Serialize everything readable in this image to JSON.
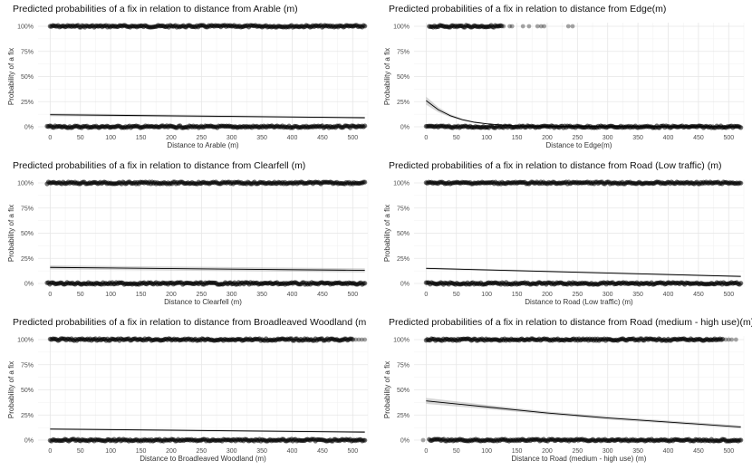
{
  "chart_data": [
    {
      "type": "scatter",
      "title": "Predicted probabilities of a fix in relation to distance from Arable (m)",
      "xlabel": "Distance to Arable (m)",
      "ylabel": "Probability of a fix",
      "xlim": [
        -20,
        525
      ],
      "ylim": [
        0,
        1
      ],
      "xticks": [
        0,
        50,
        100,
        150,
        200,
        250,
        300,
        350,
        400,
        450,
        500
      ],
      "yticks": [
        0,
        0.25,
        0.5,
        0.75,
        1
      ],
      "ytick_labels": [
        "0%",
        "25%",
        "50%",
        "75%",
        "100%"
      ],
      "grid": true,
      "points_at_1": {
        "x_start": 0,
        "x_end": 520,
        "sparse": []
      },
      "points_at_0": {
        "x_start": -5,
        "x_end": 520,
        "sparse": []
      },
      "fit_line": {
        "x": [
          0,
          520
        ],
        "y": [
          0.12,
          0.09
        ]
      },
      "ci_band": {
        "x": [
          0,
          520
        ],
        "lower": [
          0.105,
          0.08
        ],
        "upper": [
          0.135,
          0.1
        ]
      }
    },
    {
      "type": "scatter",
      "title": "Predicted probabilities of a fix in relation to distance from Edge(m)",
      "xlabel": "Distance to Edge(m)",
      "ylabel": "Probability of a fix",
      "xlim": [
        -20,
        525
      ],
      "ylim": [
        0,
        1
      ],
      "xticks": [
        0,
        50,
        100,
        150,
        200,
        250,
        300,
        350,
        400,
        450,
        500
      ],
      "yticks": [
        0,
        0.25,
        0.5,
        0.75,
        1
      ],
      "ytick_labels": [
        "0%",
        "25%",
        "50%",
        "75%",
        "100%"
      ],
      "grid": true,
      "points_at_1": {
        "x_start": 5,
        "x_end": 125,
        "sparse": [
          128,
          138,
          142,
          160,
          170,
          184,
          190,
          195,
          235,
          242
        ]
      },
      "points_at_0": {
        "x_start": 0,
        "x_end": 520,
        "sparse": []
      },
      "fit_line": {
        "x": [
          0,
          20,
          40,
          60,
          80,
          100,
          120,
          150,
          200,
          300,
          400,
          520
        ],
        "y": [
          0.26,
          0.17,
          0.11,
          0.07,
          0.045,
          0.03,
          0.02,
          0.01,
          0.005,
          0.003,
          0.002,
          0.001
        ]
      },
      "ci_band": {
        "x": [
          0,
          20,
          40,
          60,
          80,
          100,
          120,
          150,
          200,
          300,
          400,
          520
        ],
        "lower": [
          0.22,
          0.145,
          0.095,
          0.06,
          0.038,
          0.025,
          0.016,
          0.008,
          0.004,
          0.002,
          0.001,
          0.0
        ],
        "upper": [
          0.3,
          0.195,
          0.125,
          0.08,
          0.052,
          0.035,
          0.024,
          0.012,
          0.006,
          0.004,
          0.003,
          0.002
        ]
      }
    },
    {
      "type": "scatter",
      "title": "Predicted probabilities of a fix in relation to distance from Clearfell (m)",
      "xlabel": "Distance to Clearfell (m)",
      "ylabel": "Probability of a fix",
      "xlim": [
        -20,
        525
      ],
      "ylim": [
        0,
        1
      ],
      "xticks": [
        0,
        50,
        100,
        150,
        200,
        250,
        300,
        350,
        400,
        450,
        500
      ],
      "yticks": [
        0,
        0.25,
        0.5,
        0.75,
        1
      ],
      "ytick_labels": [
        "0%",
        "25%",
        "50%",
        "75%",
        "100%"
      ],
      "grid": true,
      "points_at_1": {
        "x_start": -5,
        "x_end": 520,
        "sparse": []
      },
      "points_at_0": {
        "x_start": -5,
        "x_end": 520,
        "sparse": []
      },
      "fit_line": {
        "x": [
          0,
          520
        ],
        "y": [
          0.16,
          0.13
        ]
      },
      "ci_band": {
        "x": [
          0,
          520
        ],
        "lower": [
          0.14,
          0.11
        ],
        "upper": [
          0.18,
          0.15
        ]
      }
    },
    {
      "type": "scatter",
      "title": "Predicted probabilities of a fix in relation to distance from Road (Low traffic) (m)",
      "xlabel": "Distance to Road (Low traffic) (m)",
      "ylabel": "Probability of a fix",
      "xlim": [
        -20,
        525
      ],
      "ylim": [
        0,
        1
      ],
      "xticks": [
        0,
        50,
        100,
        150,
        200,
        250,
        300,
        350,
        400,
        450,
        500
      ],
      "yticks": [
        0,
        0.25,
        0.5,
        0.75,
        1
      ],
      "ytick_labels": [
        "0%",
        "25%",
        "50%",
        "75%",
        "100%"
      ],
      "grid": true,
      "points_at_1": {
        "x_start": 0,
        "x_end": 520,
        "sparse": []
      },
      "points_at_0": {
        "x_start": 0,
        "x_end": 520,
        "sparse": []
      },
      "fit_line": {
        "x": [
          0,
          520
        ],
        "y": [
          0.15,
          0.07
        ]
      },
      "ci_band": {
        "x": [
          0,
          520
        ],
        "lower": [
          0.14,
          0.06
        ],
        "upper": [
          0.16,
          0.08
        ]
      }
    },
    {
      "type": "scatter",
      "title": "Predicted probabilities of a fix in relation to distance from Broadleaved Woodland (m",
      "xlabel": "Distance to Broadleaved Woodland (m)",
      "ylabel": "Probability of a fix",
      "xlim": [
        -20,
        525
      ],
      "ylim": [
        0,
        1
      ],
      "xticks": [
        0,
        50,
        100,
        150,
        200,
        250,
        300,
        350,
        400,
        450,
        500
      ],
      "yticks": [
        0,
        0.25,
        0.5,
        0.75,
        1
      ],
      "ytick_labels": [
        "0%",
        "25%",
        "50%",
        "75%",
        "100%"
      ],
      "grid": true,
      "points_at_1": {
        "x_start": 0,
        "x_end": 500,
        "sparse": [
          505,
          510,
          515,
          520
        ]
      },
      "points_at_0": {
        "x_start": 0,
        "x_end": 520,
        "sparse": []
      },
      "fit_line": {
        "x": [
          0,
          520
        ],
        "y": [
          0.11,
          0.08
        ]
      },
      "ci_band": {
        "x": [
          0,
          520
        ],
        "lower": [
          0.1,
          0.07
        ],
        "upper": [
          0.12,
          0.09
        ]
      }
    },
    {
      "type": "scatter",
      "title": "Predicted probabilities of a fix in relation to distance from Road (medium - high use)(m)",
      "xlabel": "Distance to Road (medium - high use) (m)",
      "ylabel": "Probability of a fix",
      "xlim": [
        -20,
        525
      ],
      "ylim": [
        0,
        1
      ],
      "xticks": [
        0,
        50,
        100,
        150,
        200,
        250,
        300,
        350,
        400,
        450,
        500
      ],
      "yticks": [
        0,
        0.25,
        0.5,
        0.75,
        1
      ],
      "ytick_labels": [
        "0%",
        "25%",
        "50%",
        "75%",
        "100%"
      ],
      "grid": true,
      "points_at_1": {
        "x_start": 0,
        "x_end": 490,
        "sparse": [
          495,
          500,
          505,
          512
        ]
      },
      "points_at_0": {
        "x_start": 5,
        "x_end": 520,
        "sparse": [
          -5
        ]
      },
      "fit_line": {
        "x": [
          0,
          100,
          200,
          300,
          400,
          520
        ],
        "y": [
          0.39,
          0.33,
          0.27,
          0.22,
          0.18,
          0.13
        ]
      },
      "ci_band": {
        "x": [
          0,
          100,
          200,
          300,
          400,
          520
        ],
        "lower": [
          0.36,
          0.31,
          0.255,
          0.205,
          0.165,
          0.115
        ],
        "upper": [
          0.42,
          0.35,
          0.285,
          0.235,
          0.195,
          0.145
        ]
      }
    }
  ]
}
